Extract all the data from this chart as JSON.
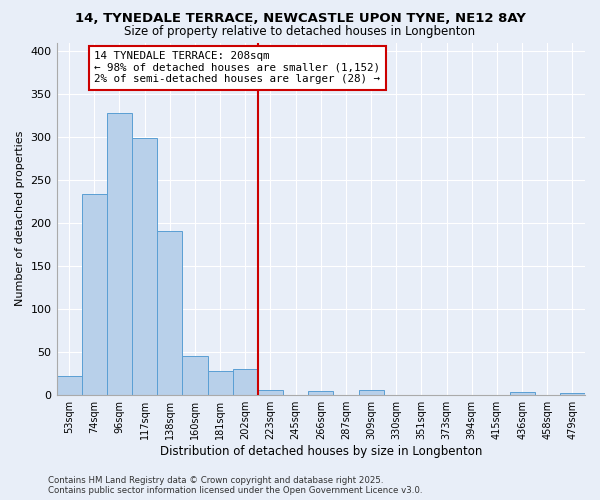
{
  "title1": "14, TYNEDALE TERRACE, NEWCASTLE UPON TYNE, NE12 8AY",
  "title2": "Size of property relative to detached houses in Longbenton",
  "xlabel": "Distribution of detached houses by size in Longbenton",
  "ylabel": "Number of detached properties",
  "bin_labels": [
    "53sqm",
    "74sqm",
    "96sqm",
    "117sqm",
    "138sqm",
    "160sqm",
    "181sqm",
    "202sqm",
    "223sqm",
    "245sqm",
    "266sqm",
    "287sqm",
    "309sqm",
    "330sqm",
    "351sqm",
    "373sqm",
    "394sqm",
    "415sqm",
    "436sqm",
    "458sqm",
    "479sqm"
  ],
  "bar_values": [
    22,
    234,
    328,
    299,
    190,
    45,
    28,
    30,
    5,
    0,
    4,
    0,
    5,
    0,
    0,
    0,
    0,
    0,
    3,
    0,
    2
  ],
  "bar_color": "#b8d0ea",
  "bar_edge_color": "#5a9fd4",
  "vline_color": "#cc0000",
  "annotation_text": "14 TYNEDALE TERRACE: 208sqm\n← 98% of detached houses are smaller (1,152)\n2% of semi-detached houses are larger (28) →",
  "annotation_box_color": "#ffffff",
  "annotation_box_edge": "#cc0000",
  "ylim": [
    0,
    410
  ],
  "yticks": [
    0,
    50,
    100,
    150,
    200,
    250,
    300,
    350,
    400
  ],
  "footer1": "Contains HM Land Registry data © Crown copyright and database right 2025.",
  "footer2": "Contains public sector information licensed under the Open Government Licence v3.0.",
  "bg_color": "#e8eef8",
  "plot_bg_color": "#e8eef8"
}
